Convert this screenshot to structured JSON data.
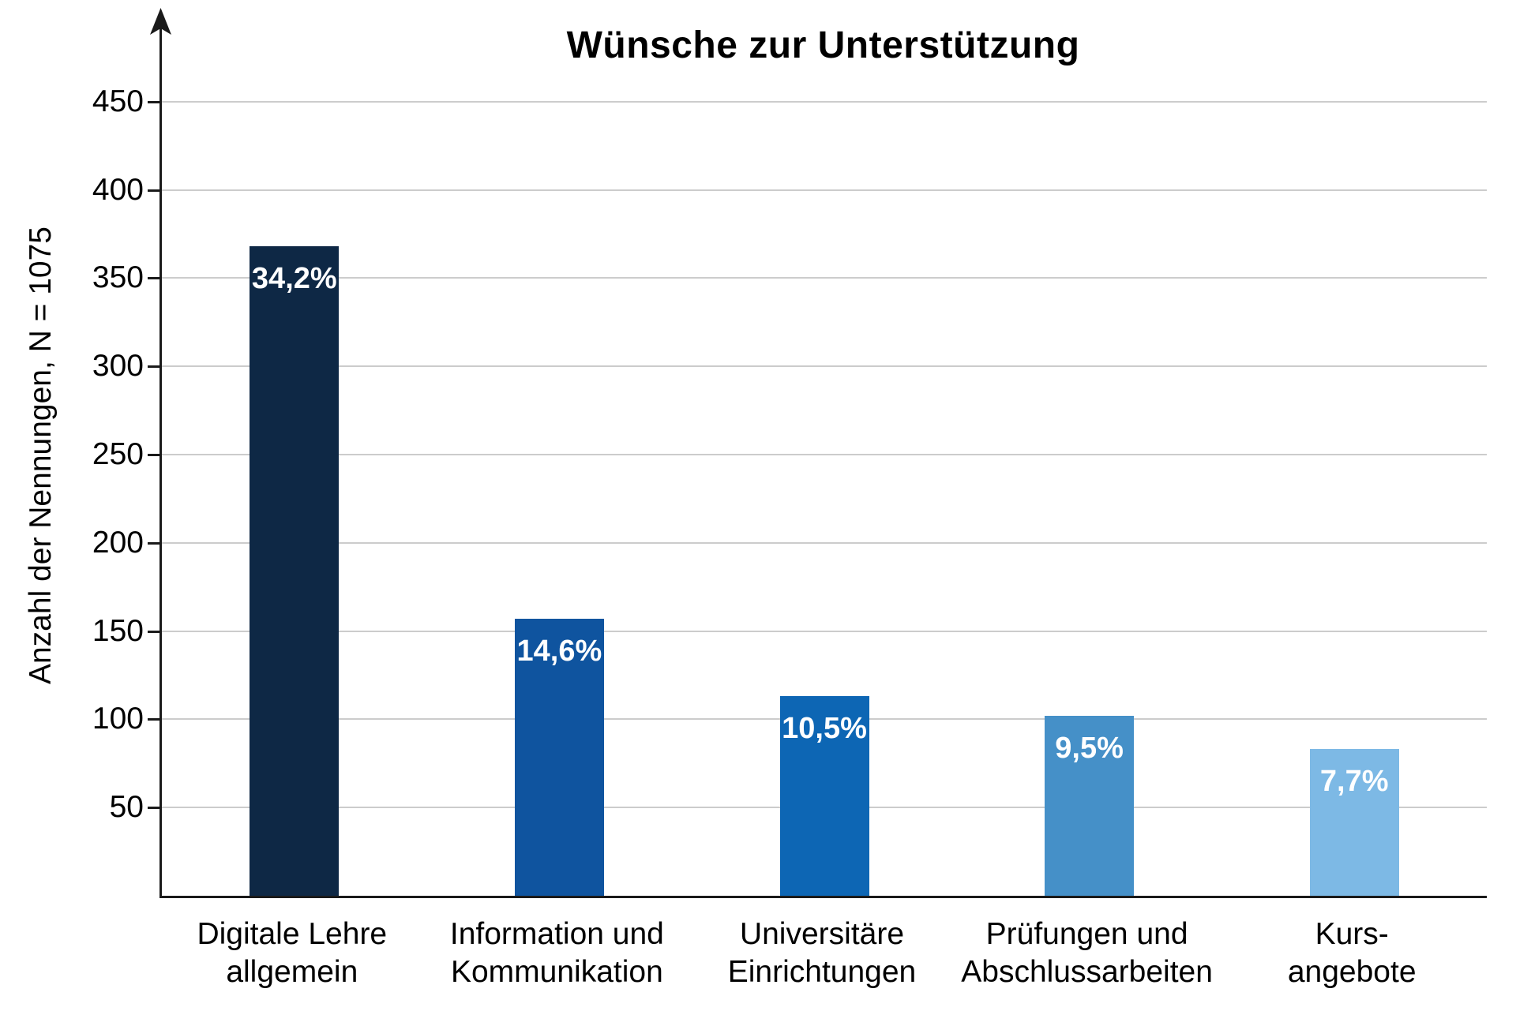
{
  "chart_data": {
    "type": "bar",
    "title": "Wünsche zur Unterstützung",
    "ylabel": "Anzahl der Nennungen, N = 1075",
    "xlabel": "",
    "categories": [
      "Digitale Lehre\nallgemein",
      "Information und\nKommunikation",
      "Universitäre\nEinrichtungen",
      "Prüfungen und\nAbschlussarbeiten",
      "Kurs-\nangebote"
    ],
    "values": [
      368,
      157,
      113,
      102,
      83
    ],
    "percent_labels": [
      "34,2%",
      "14,6%",
      "10,5%",
      "9,5%",
      "7,7%"
    ],
    "bar_colors": [
      "#0e2845",
      "#0f549f",
      "#0d66b4",
      "#4590c8",
      "#7db9e5"
    ],
    "yticks": [
      50,
      100,
      150,
      200,
      250,
      300,
      350,
      400,
      450
    ],
    "ylim": [
      0,
      483
    ],
    "grid": true,
    "legend": false,
    "colors": {
      "axis": "#1a1a1a",
      "gridline": "#cccccc",
      "value_label_text": "#ffffff",
      "background": "#ffffff"
    }
  }
}
